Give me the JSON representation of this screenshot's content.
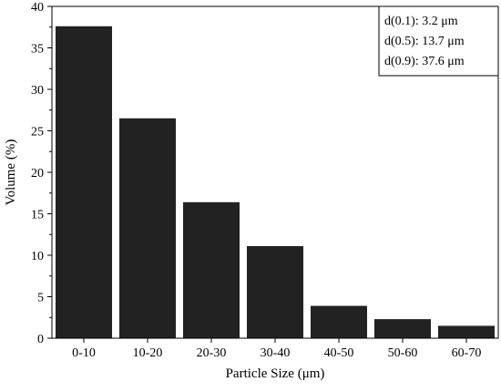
{
  "chart_data": {
    "type": "bar",
    "categories": [
      "0-10",
      "10-20",
      "20-30",
      "30-40",
      "40-50",
      "50-60",
      "60-70"
    ],
    "values": [
      37.6,
      26.5,
      16.4,
      11.1,
      3.9,
      2.3,
      1.5
    ],
    "xlabel": "Particle Size (μm)",
    "ylabel": "Volume (%)",
    "ylim": [
      0,
      40
    ],
    "yticks": [
      0,
      5,
      10,
      15,
      20,
      25,
      30,
      35,
      40
    ],
    "bar_color": "#222222",
    "grid": false,
    "legend_placement": "top-right",
    "annotations": [
      "d(0.1): 3.2 μm",
      "d(0.5): 13.7 μm",
      "d(0.9): 37.6 μm"
    ]
  }
}
